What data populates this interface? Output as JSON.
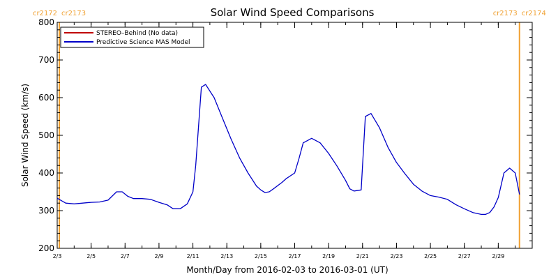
{
  "chart_data": {
    "type": "line",
    "title": "Solar Wind Speed Comparisons",
    "xlabel": "Month/Day from 2016-02-03 to 2016-03-01 (UT)",
    "ylabel": "Solar Wind Speed (km/s)",
    "ylim": [
      200,
      800
    ],
    "y_ticks": [
      200,
      300,
      400,
      500,
      600,
      700,
      800
    ],
    "xlim": [
      "2016-02-03",
      "2016-03-02"
    ],
    "x_ticks": [
      {
        "date": "2016-02-03",
        "label": "2/3"
      },
      {
        "date": "2016-02-05",
        "label": "2/5"
      },
      {
        "date": "2016-02-07",
        "label": "2/7"
      },
      {
        "date": "2016-02-09",
        "label": "2/9"
      },
      {
        "date": "2016-02-11",
        "label": "2/11"
      },
      {
        "date": "2016-02-13",
        "label": "2/13"
      },
      {
        "date": "2016-02-15",
        "label": "2/15"
      },
      {
        "date": "2016-02-17",
        "label": "2/17"
      },
      {
        "date": "2016-02-19",
        "label": "2/19"
      },
      {
        "date": "2016-02-21",
        "label": "2/21"
      },
      {
        "date": "2016-02-23",
        "label": "2/23"
      },
      {
        "date": "2016-02-25",
        "label": "2/25"
      },
      {
        "date": "2016-02-27",
        "label": "2/27"
      },
      {
        "date": "2016-02-29",
        "label": "2/29"
      }
    ],
    "grid": false,
    "legend_position": "top-left",
    "carrington_markers": [
      {
        "date": "2016-02-03 03:00",
        "labels": [
          "cr2172",
          "cr2173"
        ],
        "color": "#f0a030"
      },
      {
        "date": "2016-03-01 06:00",
        "labels": [
          "cr2173",
          "cr2174"
        ],
        "color": "#f0a030"
      }
    ],
    "series": [
      {
        "name": "STEREO–Behind (No data)",
        "color": "#c00000",
        "x": [],
        "values": []
      },
      {
        "name": "Predictive Science MAS Model",
        "color": "#0000c8",
        "x": [
          "2016-02-03 00:00",
          "2016-02-03 12:00",
          "2016-02-04 00:00",
          "2016-02-04 12:00",
          "2016-02-05 00:00",
          "2016-02-05 12:00",
          "2016-02-06 00:00",
          "2016-02-06 12:00",
          "2016-02-06 20:00",
          "2016-02-07 04:00",
          "2016-02-07 12:00",
          "2016-02-08 00:00",
          "2016-02-08 12:00",
          "2016-02-09 00:00",
          "2016-02-09 12:00",
          "2016-02-09 20:00",
          "2016-02-10 06:00",
          "2016-02-10 16:00",
          "2016-02-11 00:00",
          "2016-02-11 04:00",
          "2016-02-11 12:00",
          "2016-02-11 18:00",
          "2016-02-12 06:00",
          "2016-02-12 18:00",
          "2016-02-13 06:00",
          "2016-02-13 18:00",
          "2016-02-14 06:00",
          "2016-02-14 18:00",
          "2016-02-15 00:00",
          "2016-02-15 06:00",
          "2016-02-15 12:00",
          "2016-02-15 18:00",
          "2016-02-16 06:00",
          "2016-02-16 12:00",
          "2016-02-17 00:00",
          "2016-02-17 06:00",
          "2016-02-17 12:00",
          "2016-02-18 00:00",
          "2016-02-18 12:00",
          "2016-02-19 00:00",
          "2016-02-19 12:00",
          "2016-02-20 00:00",
          "2016-02-20 06:00",
          "2016-02-20 12:00",
          "2016-02-20 22:00",
          "2016-02-21 04:00",
          "2016-02-21 12:00",
          "2016-02-22 00:00",
          "2016-02-22 12:00",
          "2016-02-23 00:00",
          "2016-02-23 12:00",
          "2016-02-24 00:00",
          "2016-02-24 12:00",
          "2016-02-25 00:00",
          "2016-02-25 12:00",
          "2016-02-26 00:00",
          "2016-02-26 12:00",
          "2016-02-27 00:00",
          "2016-02-27 12:00",
          "2016-02-28 00:00",
          "2016-02-28 06:00",
          "2016-02-28 12:00",
          "2016-02-28 18:00",
          "2016-02-29 00:00",
          "2016-02-29 08:00",
          "2016-02-29 16:00",
          "2016-03-01 00:00",
          "2016-03-01 06:00"
        ],
        "values": [
          333,
          320,
          318,
          320,
          322,
          323,
          328,
          350,
          350,
          338,
          332,
          332,
          330,
          322,
          315,
          305,
          305,
          318,
          350,
          420,
          628,
          635,
          600,
          545,
          490,
          440,
          400,
          365,
          355,
          348,
          350,
          358,
          375,
          385,
          400,
          438,
          480,
          492,
          480,
          452,
          418,
          380,
          358,
          352,
          355,
          550,
          558,
          520,
          468,
          428,
          398,
          370,
          352,
          340,
          336,
          330,
          316,
          305,
          295,
          290,
          290,
          295,
          310,
          335,
          400,
          413,
          400,
          343
        ]
      }
    ]
  }
}
